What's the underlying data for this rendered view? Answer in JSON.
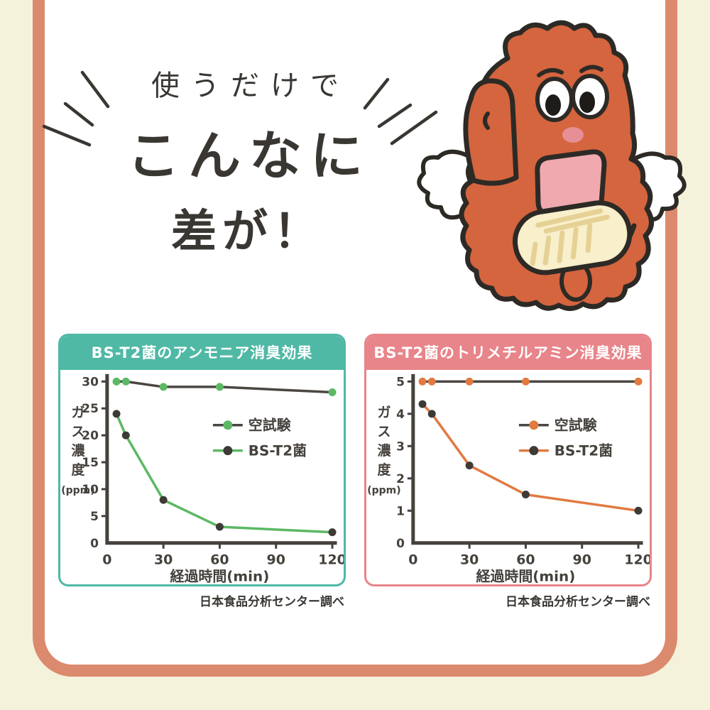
{
  "page": {
    "background_color": "#f5f2dc",
    "frame_color": "#db8a6e",
    "card_color": "#ffffff"
  },
  "headline": {
    "line1": "使うだけで",
    "line2": "こんなに",
    "line3": "差が！",
    "text_color": "#3a3733"
  },
  "mascot": {
    "description": "winged-orange-mitt-character-holding-soap",
    "body_color": "#d4653e",
    "outline_color": "#2d2a26",
    "wing_color": "#ffffff",
    "soap_color": "#f8efcb"
  },
  "chart_data": [
    {
      "type": "line",
      "title": "BS-T2菌のアンモニア消臭効果",
      "theme_color": "#4fb9a5",
      "xlabel": "経過時間(min)",
      "ylabel": "ガス濃度(ppm)",
      "xlim": [
        0,
        120
      ],
      "ylim": [
        0,
        30
      ],
      "xticks": [
        0,
        30,
        60,
        90,
        120
      ],
      "yticks": [
        0,
        5,
        10,
        15,
        20,
        25,
        30
      ],
      "x": [
        5,
        10,
        30,
        60,
        120
      ],
      "series": [
        {
          "name": "空試験",
          "values": [
            30,
            30,
            29,
            29,
            28
          ],
          "line_color": "#4a4642",
          "marker_color": "#5cb864"
        },
        {
          "name": "BS-T2菌",
          "values": [
            24,
            20,
            8,
            3,
            2
          ],
          "line_color": "#5cb864",
          "marker_color": "#3e3a36"
        }
      ],
      "legend_position": "middle-right",
      "grid": false,
      "source": "日本食品分析センター調べ"
    },
    {
      "type": "line",
      "title": "BS-T2菌のトリメチルアミン消臭効果",
      "theme_color": "#e8858a",
      "xlabel": "経過時間(min)",
      "ylabel": "ガス濃度(ppm)",
      "xlim": [
        0,
        120
      ],
      "ylim": [
        0,
        5
      ],
      "xticks": [
        0,
        30,
        60,
        90,
        120
      ],
      "yticks": [
        0,
        1,
        2,
        3,
        4,
        5
      ],
      "x": [
        5,
        10,
        30,
        60,
        120
      ],
      "series": [
        {
          "name": "空試験",
          "values": [
            5,
            5,
            5,
            5,
            5
          ],
          "line_color": "#4a4642",
          "marker_color": "#e17a41"
        },
        {
          "name": "BS-T2菌",
          "values": [
            4.3,
            4,
            2.4,
            1.5,
            1
          ],
          "line_color": "#e17a41",
          "marker_color": "#3e3a36"
        }
      ],
      "legend_position": "middle-right",
      "grid": false,
      "source": "日本食品分析センター調べ"
    }
  ]
}
